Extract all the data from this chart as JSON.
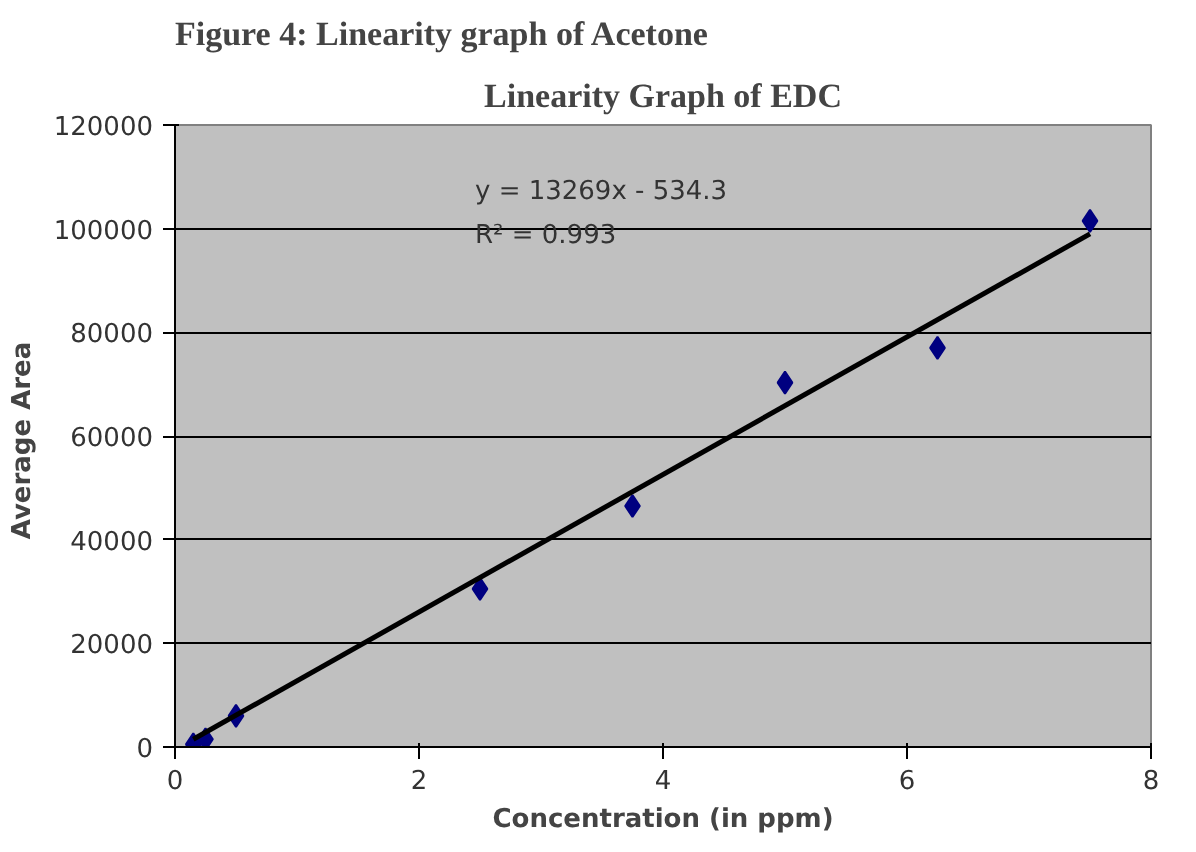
{
  "chart_data": {
    "type": "scatter",
    "title": "Linearity Graph of EDC",
    "xlabel": "Concentration (in ppm)",
    "ylabel": "Average  Area",
    "xlim": [
      0,
      8
    ],
    "xticks": [
      0,
      2,
      4,
      6,
      8
    ],
    "ylim": [
      0,
      120000
    ],
    "yticks": [
      0,
      20000,
      40000,
      60000,
      80000,
      100000,
      120000
    ],
    "grid": "y",
    "series": [
      {
        "marker": "diamond",
        "color": "#000080",
        "x": [
          0.15,
          0.25,
          0.5,
          2.5,
          3.75,
          5,
          6.25,
          7.5
        ],
        "values": [
          500,
          1500,
          6000,
          30500,
          46500,
          70300,
          77000,
          101500
        ]
      },
      {
        "type": "line",
        "color": "#000000",
        "x": [
          0.15,
          7.5
        ],
        "values": [
          1500,
          99000
        ]
      }
    ],
    "annotations": [
      "Figure 4: Linearity graph of Acetone",
      "y = 13269x - 534.3",
      "R² = 0.993"
    ]
  }
}
